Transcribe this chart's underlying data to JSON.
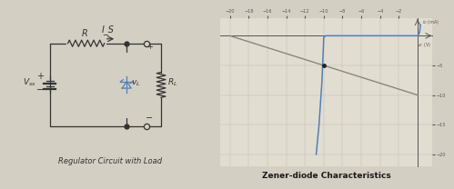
{
  "bg_color": "#d4cfc3",
  "left_label": "Regulator Circuit with Load",
  "right_label": "Zener-diode Characteristics",
  "graph_bg": "#e2ddd1",
  "grid_color": "#c0bbb0",
  "axis_color": "#555555",
  "zener_color": "#5080b8",
  "load_line_color": "#888878",
  "x_ticks": [
    -20,
    -18,
    -16,
    -14,
    -12,
    -10,
    -8,
    -6,
    -4,
    -2
  ],
  "y_ticks": [
    -5,
    -10,
    -15,
    -20
  ],
  "x_label": "v_D (V)",
  "y_label": "i_D (mA)",
  "circuit_color": "#333333",
  "vss_label": "V_ss",
  "r_label": "R",
  "is_label": "I_S",
  "vl_label": "v_L",
  "rl_label": "R_L",
  "dot_color": "#222222",
  "intersection_x": -10,
  "intersection_y": -5
}
